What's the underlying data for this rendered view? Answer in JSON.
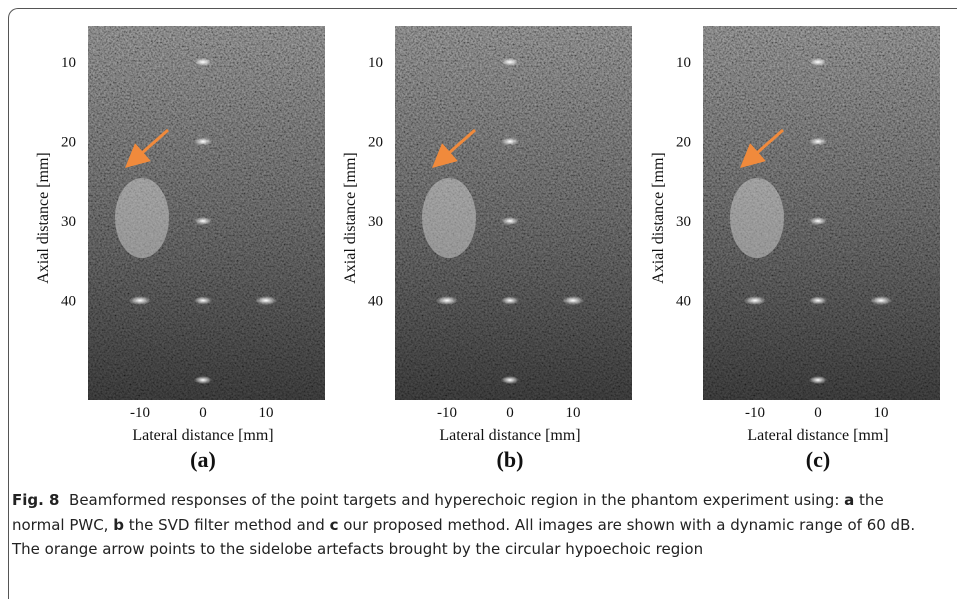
{
  "figure": {
    "panels": [
      {
        "label": "(a)",
        "x_label": "Lateral distance [mm]",
        "y_label": "Axial distance [mm]",
        "y_ticks": [
          "10",
          "20",
          "30",
          "40"
        ],
        "x_ticks": [
          "-10",
          "0",
          "10"
        ]
      },
      {
        "label": "(b)",
        "x_label": "Lateral distance [mm]",
        "y_label": "Axial distance [mm]",
        "y_ticks": [
          "10",
          "20",
          "30",
          "40"
        ],
        "x_ticks": [
          "-10",
          "0",
          "10"
        ]
      },
      {
        "label": "(c)",
        "x_label": "Lateral distance [mm]",
        "y_label": "Axial distance [mm]",
        "y_ticks": [
          "10",
          "20",
          "30",
          "40"
        ],
        "x_ticks": [
          "-10",
          "0",
          "10"
        ]
      }
    ]
  },
  "caption": {
    "label": "Fig. 8",
    "parts": [
      "Beamformed responses of the point targets and hyperechoic region in the phantom experiment using: ",
      "a",
      " the normal PWC, ",
      "b",
      " the SVD filter method and ",
      "c",
      " our proposed method. All images are shown with a dynamic range of 60 dB. The orange arrow points to the sidelobe artefacts brought by the circular hypoechoic region"
    ]
  }
}
